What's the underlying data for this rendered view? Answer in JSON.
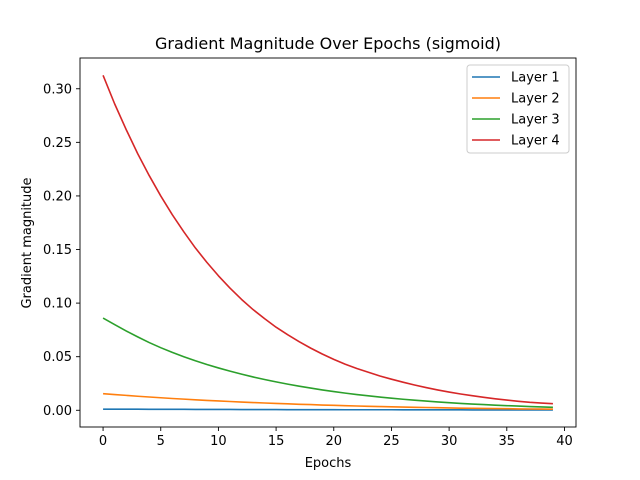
{
  "chart_data": {
    "type": "line",
    "title": "Gradient Magnitude Over Epochs (sigmoid)",
    "xlabel": "Epochs",
    "ylabel": "Gradient magnitude",
    "xlim": [
      -2,
      41
    ],
    "ylim": [
      -0.0156,
      0.3287
    ],
    "xticks": [
      0,
      5,
      10,
      15,
      20,
      25,
      30,
      35,
      40
    ],
    "yticks": [
      0.0,
      0.05,
      0.1,
      0.15,
      0.2,
      0.25,
      0.3
    ],
    "ytick_labels": [
      "0.00",
      "0.05",
      "0.10",
      "0.15",
      "0.20",
      "0.25",
      "0.30"
    ],
    "grid": false,
    "legend_position": "top-right",
    "x": [
      0,
      1,
      2,
      3,
      4,
      5,
      6,
      7,
      8,
      9,
      10,
      11,
      12,
      13,
      14,
      15,
      16,
      17,
      18,
      19,
      20,
      21,
      22,
      23,
      24,
      25,
      26,
      27,
      28,
      29,
      30,
      31,
      32,
      33,
      34,
      35,
      36,
      37,
      38,
      39
    ],
    "series": [
      {
        "name": "Layer 1",
        "color": "#1f77b4",
        "values": [
          0.001,
          0.001,
          0.001,
          0.001,
          0.0009,
          0.0009,
          0.0009,
          0.0009,
          0.0008,
          0.0008,
          0.0008,
          0.0008,
          0.0007,
          0.0007,
          0.0007,
          0.0007,
          0.0006,
          0.0006,
          0.0006,
          0.0006,
          0.0006,
          0.0005,
          0.0005,
          0.0005,
          0.0005,
          0.0005,
          0.0004,
          0.0004,
          0.0004,
          0.0004,
          0.0004,
          0.0004,
          0.0003,
          0.0003,
          0.0003,
          0.0003,
          0.0003,
          0.0003,
          0.0003,
          0.0003
        ]
      },
      {
        "name": "Layer 2",
        "color": "#ff7f0e",
        "values": [
          0.0155,
          0.0147,
          0.0139,
          0.0131,
          0.0124,
          0.0117,
          0.011,
          0.0104,
          0.0098,
          0.0092,
          0.0087,
          0.0082,
          0.0077,
          0.0072,
          0.0068,
          0.0064,
          0.006,
          0.0056,
          0.0053,
          0.0049,
          0.0046,
          0.0043,
          0.004,
          0.0037,
          0.0035,
          0.0032,
          0.003,
          0.0028,
          0.0026,
          0.0024,
          0.0022,
          0.002,
          0.0019,
          0.0017,
          0.0016,
          0.0015,
          0.0013,
          0.0012,
          0.0011,
          0.001
        ]
      },
      {
        "name": "Layer 3",
        "color": "#2ca02c",
        "values": [
          0.086,
          0.08,
          0.074,
          0.0685,
          0.0632,
          0.0584,
          0.054,
          0.05,
          0.0462,
          0.0427,
          0.0395,
          0.0365,
          0.0337,
          0.0311,
          0.0287,
          0.0265,
          0.0244,
          0.0225,
          0.0207,
          0.019,
          0.0175,
          0.016,
          0.0147,
          0.0135,
          0.0123,
          0.0113,
          0.0103,
          0.0094,
          0.0086,
          0.0078,
          0.0071,
          0.0064,
          0.0058,
          0.0053,
          0.0048,
          0.0043,
          0.0039,
          0.0035,
          0.0031,
          0.0028
        ]
      },
      {
        "name": "Layer 4",
        "color": "#d62728",
        "values": [
          0.3125,
          0.286,
          0.262,
          0.2395,
          0.219,
          0.2,
          0.1825,
          0.1665,
          0.1515,
          0.138,
          0.1255,
          0.114,
          0.1035,
          0.094,
          0.0855,
          0.0775,
          0.0705,
          0.064,
          0.058,
          0.0525,
          0.0475,
          0.043,
          0.039,
          0.0355,
          0.032,
          0.029,
          0.0262,
          0.0236,
          0.0212,
          0.019,
          0.017,
          0.0152,
          0.0136,
          0.0121,
          0.0107,
          0.0095,
          0.0084,
          0.0074,
          0.0067,
          0.0062
        ]
      }
    ]
  }
}
